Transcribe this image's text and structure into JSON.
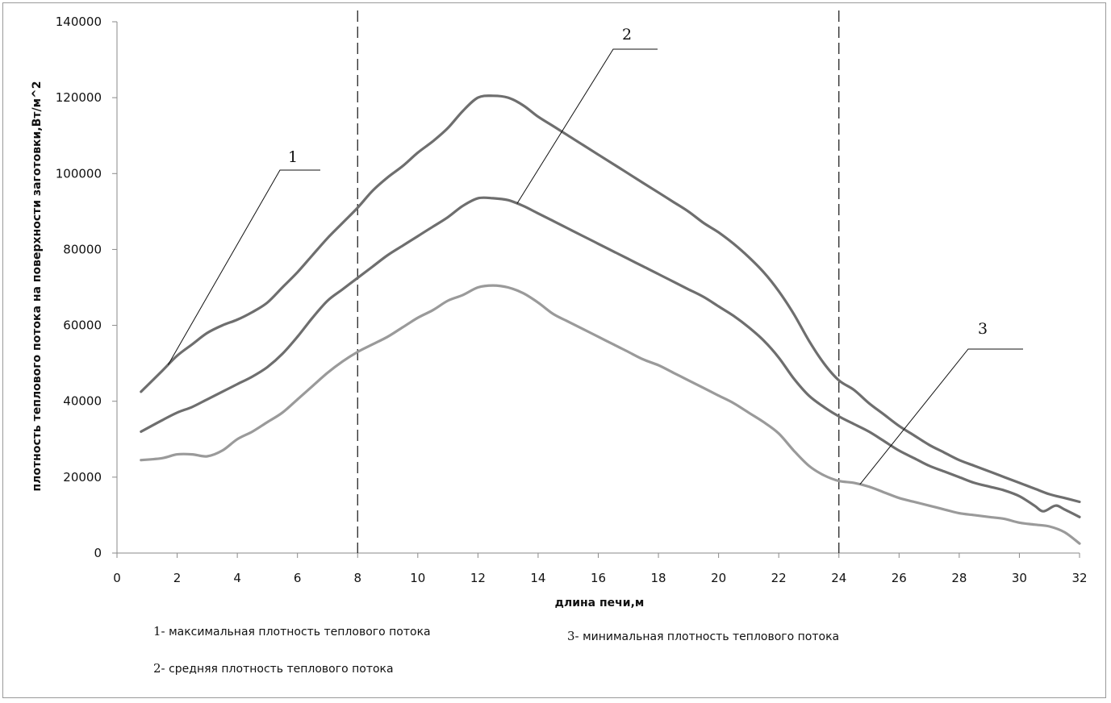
{
  "chart_data": {
    "type": "line",
    "xlabel": "длина печи,м",
    "ylabel": "плотность теплового потока на поверхности заготовки,Вт/м^2",
    "xlim": [
      0,
      32
    ],
    "ylim": [
      0,
      140000
    ],
    "x_ticks": [
      "0",
      "2",
      "4",
      "6",
      "8",
      "10",
      "12",
      "14",
      "16",
      "18",
      "20",
      "22",
      "24",
      "26",
      "28",
      "30",
      "32"
    ],
    "y_ticks": [
      "0",
      "20000",
      "40000",
      "60000",
      "80000",
      "100000",
      "120000",
      "140000"
    ],
    "grid": false,
    "vertical_markers_x": [
      8,
      24
    ],
    "series": [
      {
        "label": "1",
        "color": "#6e6e6e",
        "x": [
          0.8,
          1.5,
          2,
          2.5,
          3,
          3.5,
          4,
          4.5,
          5,
          5.5,
          6,
          6.5,
          7,
          7.5,
          8,
          8.5,
          9,
          9.5,
          10,
          10.5,
          11,
          11.5,
          12,
          12.5,
          13,
          13.5,
          14,
          14.5,
          15,
          15.5,
          16,
          16.5,
          17,
          17.5,
          18,
          18.5,
          19,
          19.5,
          20,
          20.5,
          21,
          21.5,
          22,
          22.5,
          23,
          23.5,
          24,
          24.5,
          25,
          25.5,
          26,
          26.5,
          27,
          27.5,
          28,
          28.5,
          29,
          29.5,
          30,
          30.5,
          31,
          31.5,
          32
        ],
        "values": [
          42500,
          48000,
          52000,
          55000,
          58000,
          60000,
          61500,
          63500,
          66000,
          70000,
          74000,
          78500,
          83000,
          87000,
          91000,
          95500,
          99000,
          102000,
          105500,
          108500,
          112000,
          116500,
          120000,
          120500,
          120000,
          118000,
          115000,
          112500,
          110000,
          107500,
          105000,
          102500,
          100000,
          97500,
          95000,
          92500,
          90000,
          87000,
          84500,
          81500,
          78000,
          74000,
          69000,
          63000,
          56000,
          50000,
          45500,
          43000,
          39500,
          36500,
          33500,
          31000,
          28500,
          26500,
          24500,
          23000,
          21500,
          20000,
          18500,
          17000,
          15500,
          14500,
          13500
        ]
      },
      {
        "label": "2",
        "color": "#6e6e6e",
        "x": [
          0.8,
          1.5,
          2,
          2.5,
          3,
          3.5,
          4,
          4.5,
          5,
          5.5,
          6,
          6.5,
          7,
          7.5,
          8,
          8.5,
          9,
          9.5,
          10,
          10.5,
          11,
          11.5,
          12,
          12.5,
          13,
          13.5,
          14,
          14.5,
          15,
          15.5,
          16,
          16.5,
          17,
          17.5,
          18,
          18.5,
          19,
          19.5,
          20,
          20.5,
          21,
          21.5,
          22,
          22.5,
          23,
          23.5,
          24,
          24.5,
          25,
          25.5,
          26,
          26.5,
          27,
          27.5,
          28,
          28.5,
          29,
          29.5,
          30,
          30.5,
          30.8,
          31.2,
          31.5,
          32
        ],
        "values": [
          32000,
          35000,
          37000,
          38500,
          40500,
          42500,
          44500,
          46500,
          49000,
          52500,
          57000,
          62000,
          66500,
          69500,
          72500,
          75500,
          78500,
          81000,
          83500,
          86000,
          88500,
          91500,
          93500,
          93500,
          93000,
          91500,
          89500,
          87500,
          85500,
          83500,
          81500,
          79500,
          77500,
          75500,
          73500,
          71500,
          69500,
          67500,
          65000,
          62500,
          59500,
          56000,
          51500,
          46000,
          41500,
          38500,
          36000,
          34000,
          32000,
          29500,
          27000,
          25000,
          23000,
          21500,
          20000,
          18500,
          17500,
          16500,
          15000,
          12500,
          11000,
          12500,
          11500,
          9500
        ]
      },
      {
        "label": "3",
        "color": "#9a9a9a",
        "x": [
          0.8,
          1.5,
          2,
          2.5,
          3,
          3.5,
          4,
          4.5,
          5,
          5.5,
          6,
          6.5,
          7,
          7.5,
          8,
          8.5,
          9,
          9.5,
          10,
          10.5,
          11,
          11.5,
          12,
          12.5,
          13,
          13.5,
          14,
          14.5,
          15,
          15.5,
          16,
          16.5,
          17,
          17.5,
          18,
          18.5,
          19,
          19.5,
          20,
          20.5,
          21,
          21.5,
          22,
          22.5,
          23,
          23.5,
          24,
          24.5,
          25,
          25.5,
          26,
          26.5,
          27,
          27.5,
          28,
          28.5,
          29,
          29.5,
          30,
          30.5,
          31,
          31.5,
          32
        ],
        "values": [
          24500,
          25000,
          26000,
          26000,
          25500,
          27000,
          30000,
          32000,
          34500,
          37000,
          40500,
          44000,
          47500,
          50500,
          53000,
          55000,
          57000,
          59500,
          62000,
          64000,
          66500,
          68000,
          70000,
          70500,
          70000,
          68500,
          66000,
          63000,
          61000,
          59000,
          57000,
          55000,
          53000,
          51000,
          49500,
          47500,
          45500,
          43500,
          41500,
          39500,
          37000,
          34500,
          31500,
          27000,
          23000,
          20500,
          19000,
          18500,
          17500,
          16000,
          14500,
          13500,
          12500,
          11500,
          10500,
          10000,
          9500,
          9000,
          8000,
          7500,
          7000,
          5500,
          2500
        ]
      }
    ],
    "callouts": [
      {
        "text": "1",
        "series": 0,
        "x": 1.7
      },
      {
        "text": "2",
        "series": 1,
        "x": 13.3
      },
      {
        "text": "3",
        "series": 2,
        "x": 24.7
      }
    ]
  },
  "legend": {
    "item1_num": "1-",
    "item1_text": "максимальная плотность теплового потока",
    "item2_num": "2-",
    "item2_text": "средняя плотность теплового потока",
    "item3_num": "3-",
    "item3_text": "минимальная плотность теплового потока"
  }
}
